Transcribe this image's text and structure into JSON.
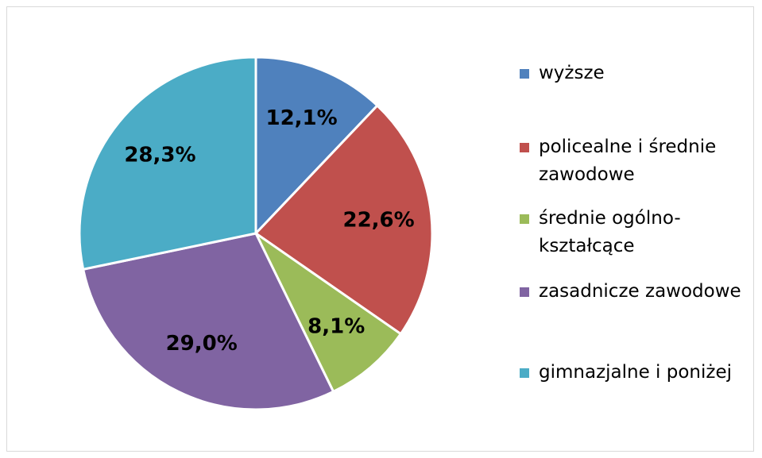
{
  "chart_data": {
    "type": "pie",
    "categories": [
      "wyższe",
      "policealne i średnie zawodowe",
      "średnie ogólno-kształcące",
      "zasadnicze zawodowe",
      "gimnazjalne i poniżej"
    ],
    "values": [
      12.1,
      22.6,
      8.1,
      29.0,
      28.3
    ],
    "value_labels": [
      "12,1%",
      "22,6%",
      "8,1%",
      "29,0%",
      "28,3%"
    ],
    "colors": [
      "#4f81bd",
      "#c0504d",
      "#9bbb59",
      "#8064a2",
      "#4bacc6"
    ],
    "legend": "right"
  }
}
